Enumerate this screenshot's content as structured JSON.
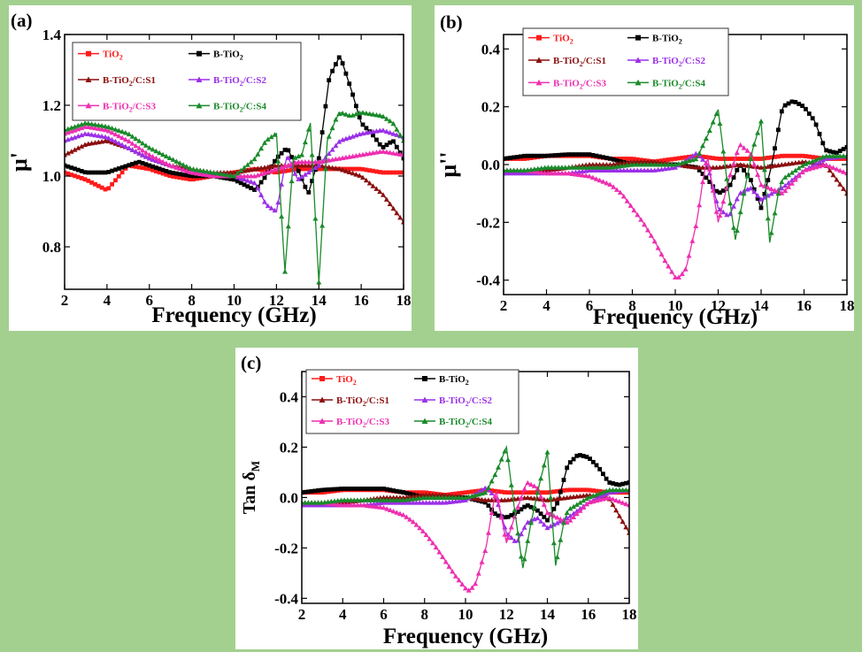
{
  "colors": {
    "background": "#a3d08f",
    "TiO2": "#ff1a1a",
    "B-TiO2": "#000000",
    "S1": "#8b0f0f",
    "S2": "#9b30e8",
    "S3": "#ee2fb0",
    "S4": "#1a8a2a"
  },
  "legend": {
    "entries": [
      {
        "key": "TiO2",
        "base": "TiO",
        "sub": "2",
        "rest": "",
        "color": "#ff1a1a",
        "marker": "square"
      },
      {
        "key": "B-TiO2",
        "base": "B-TiO",
        "sub": "2",
        "rest": "",
        "color": "#000000",
        "marker": "square"
      },
      {
        "key": "S1",
        "base": "B-TiO",
        "sub": "2",
        "rest": "/C:S1",
        "color": "#8b0f0f",
        "marker": "triangle"
      },
      {
        "key": "S2",
        "base": "B-TiO",
        "sub": "2",
        "rest": "/C:S2",
        "color": "#9b30e8",
        "marker": "triangle"
      },
      {
        "key": "S3",
        "base": "B-TiO",
        "sub": "2",
        "rest": "/C:S3",
        "color": "#ee2fb0",
        "marker": "triangle"
      },
      {
        "key": "S4",
        "base": "B-TiO",
        "sub": "2",
        "rest": "/C:S4",
        "color": "#1a8a2a",
        "marker": "triangle"
      }
    ]
  },
  "chart_data": [
    {
      "panel": "(a)",
      "type": "line",
      "xlabel": "Frequency (GHz)",
      "ylabel": "μ'",
      "xlim": [
        2,
        18
      ],
      "ylim": [
        0.68,
        1.4
      ],
      "xticks": [
        2,
        4,
        6,
        8,
        10,
        12,
        14,
        16,
        18
      ],
      "yticks": [
        0.8,
        1.0,
        1.2,
        1.4
      ],
      "ytick_labels": [
        "0.8",
        "1.0",
        "1.2",
        "1.4"
      ],
      "series": [
        {
          "name": "TiO2",
          "x": [
            2,
            3,
            4,
            5,
            6,
            7,
            8,
            9,
            10,
            11,
            12,
            13,
            14,
            15,
            16,
            17,
            18
          ],
          "y": [
            1.01,
            0.99,
            0.96,
            1.03,
            1.02,
            1.0,
            0.99,
            1.0,
            1.01,
            1.02,
            1.01,
            1.02,
            1.02,
            1.02,
            1.02,
            1.01,
            1.01
          ]
        },
        {
          "name": "B-TiO2",
          "x": [
            2,
            3,
            4,
            5,
            5.5,
            6,
            7,
            8,
            9,
            10,
            11,
            11.5,
            12,
            12.5,
            13,
            13.5,
            14,
            14.5,
            15,
            15.5,
            16,
            16.5,
            17,
            17.5,
            18
          ],
          "y": [
            1.03,
            1.01,
            1.01,
            1.03,
            1.04,
            1.03,
            1.01,
            1.0,
            1.0,
            0.99,
            0.96,
            1.0,
            1.05,
            1.08,
            1.02,
            0.95,
            1.05,
            1.28,
            1.34,
            1.25,
            1.15,
            1.12,
            1.08,
            1.1,
            1.05
          ]
        },
        {
          "name": "S1",
          "x": [
            2,
            3,
            4,
            5,
            6,
            7,
            8,
            9,
            10,
            11,
            12,
            13,
            14,
            15,
            16,
            17,
            18
          ],
          "y": [
            1.06,
            1.09,
            1.1,
            1.08,
            1.05,
            1.03,
            1.02,
            1.01,
            1.01,
            1.02,
            1.03,
            1.03,
            1.03,
            1.02,
            1.0,
            0.95,
            0.87
          ]
        },
        {
          "name": "S2",
          "x": [
            2,
            3,
            4,
            5,
            6,
            7,
            8,
            9,
            10,
            11,
            11.5,
            12,
            12.5,
            13,
            14,
            15,
            16,
            17,
            18
          ],
          "y": [
            1.1,
            1.12,
            1.11,
            1.08,
            1.05,
            1.03,
            1.01,
            1.01,
            1.0,
            0.98,
            0.92,
            0.9,
            1.06,
            0.99,
            1.03,
            1.1,
            1.12,
            1.13,
            1.11
          ]
        },
        {
          "name": "S3",
          "x": [
            2,
            3,
            4,
            5,
            6,
            7,
            8,
            9,
            10,
            11,
            12,
            13,
            14,
            15,
            16,
            17,
            18
          ],
          "y": [
            1.12,
            1.14,
            1.13,
            1.1,
            1.06,
            1.03,
            1.01,
            1.0,
            1.0,
            1.0,
            1.02,
            1.04,
            1.04,
            1.05,
            1.06,
            1.07,
            1.06
          ]
        },
        {
          "name": "S4",
          "x": [
            2,
            3,
            4,
            5,
            6,
            7,
            8,
            9,
            10,
            11,
            11.5,
            12,
            12.4,
            12.8,
            13.2,
            13.6,
            14,
            14.4,
            14.8,
            15,
            15.5,
            16,
            17,
            17.5,
            18
          ],
          "y": [
            1.13,
            1.15,
            1.14,
            1.12,
            1.08,
            1.05,
            1.02,
            1.01,
            1.0,
            1.05,
            1.1,
            1.12,
            0.73,
            1.05,
            1.06,
            1.15,
            0.7,
            1.1,
            1.16,
            1.18,
            1.17,
            1.18,
            1.17,
            1.15,
            1.1
          ]
        }
      ]
    },
    {
      "panel": "(b)",
      "type": "line",
      "xlabel": "Frequency (GHz)",
      "ylabel": "μ''",
      "xlim": [
        2,
        18
      ],
      "ylim": [
        -0.45,
        0.45
      ],
      "xticks": [
        2,
        4,
        6,
        8,
        10,
        12,
        14,
        16,
        18
      ],
      "yticks": [
        -0.4,
        -0.2,
        0.0,
        0.2,
        0.4
      ],
      "ytick_labels": [
        "-0.4",
        "-0.2",
        "0.0",
        "0.2",
        "0.4"
      ],
      "series": [
        {
          "name": "TiO2",
          "x": [
            2,
            3,
            4,
            5,
            6,
            7,
            8,
            9,
            10,
            11,
            12,
            13,
            14,
            15,
            16,
            17,
            18
          ],
          "y": [
            0.02,
            0.02,
            0.03,
            0.03,
            0.03,
            0.02,
            0.02,
            0.01,
            0.02,
            0.03,
            0.02,
            0.02,
            0.02,
            0.03,
            0.03,
            0.02,
            0.02
          ]
        },
        {
          "name": "B-TiO2",
          "x": [
            2,
            3,
            4,
            5,
            6,
            7,
            8,
            9,
            10,
            11,
            11.5,
            12,
            12.5,
            13,
            13.5,
            14,
            14.5,
            15,
            15.5,
            16,
            16.5,
            17,
            17.5,
            18
          ],
          "y": [
            0.02,
            0.03,
            0.03,
            0.035,
            0.035,
            0.02,
            0.0,
            0.0,
            0.0,
            -0.01,
            -0.05,
            -0.1,
            -0.08,
            0.0,
            -0.05,
            -0.15,
            0.0,
            0.2,
            0.22,
            0.2,
            0.15,
            0.05,
            0.04,
            0.06
          ]
        },
        {
          "name": "S1",
          "x": [
            2,
            3,
            4,
            5,
            6,
            7,
            8,
            9,
            10,
            11,
            12,
            13,
            14,
            15,
            16,
            17,
            17.5,
            18
          ],
          "y": [
            -0.03,
            -0.02,
            -0.02,
            -0.01,
            0.0,
            0.0,
            0.01,
            0.01,
            0.0,
            -0.01,
            -0.01,
            0.0,
            -0.01,
            0.0,
            0.01,
            0.0,
            -0.05,
            -0.1
          ]
        },
        {
          "name": "S2",
          "x": [
            2,
            3,
            4,
            5,
            6,
            7,
            8,
            9,
            10,
            11,
            11.5,
            12,
            12.5,
            13,
            13.5,
            14,
            15,
            16,
            17,
            18
          ],
          "y": [
            -0.03,
            -0.03,
            -0.03,
            -0.03,
            -0.02,
            -0.02,
            -0.02,
            -0.02,
            -0.01,
            0.04,
            0.0,
            -0.15,
            -0.18,
            -0.1,
            -0.08,
            -0.12,
            -0.08,
            -0.02,
            0.02,
            0.03
          ]
        },
        {
          "name": "S3",
          "x": [
            2,
            3,
            4,
            5,
            6,
            7,
            7.5,
            8,
            8.5,
            9,
            9.5,
            10,
            10.2,
            10.5,
            11,
            11.3,
            11.5,
            12,
            12.5,
            13,
            13.5,
            14,
            15,
            16,
            17,
            18
          ],
          "y": [
            -0.02,
            -0.02,
            -0.03,
            -0.03,
            -0.04,
            -0.07,
            -0.1,
            -0.15,
            -0.2,
            -0.26,
            -0.33,
            -0.39,
            -0.39,
            -0.36,
            -0.2,
            -0.05,
            0.03,
            -0.2,
            -0.05,
            0.07,
            0.04,
            -0.07,
            -0.1,
            -0.02,
            0.0,
            -0.03
          ]
        },
        {
          "name": "S4",
          "x": [
            2,
            3,
            4,
            5,
            6,
            7,
            8,
            9,
            10,
            11,
            11.5,
            12,
            12.4,
            12.8,
            13.2,
            13.6,
            14,
            14.4,
            14.8,
            15,
            16,
            17,
            18
          ],
          "y": [
            -0.02,
            -0.02,
            -0.01,
            -0.01,
            -0.01,
            -0.01,
            0.0,
            0.0,
            0.0,
            0.02,
            0.1,
            0.19,
            -0.05,
            -0.26,
            -0.1,
            0.05,
            0.15,
            -0.27,
            -0.1,
            -0.05,
            0.0,
            0.03,
            0.03
          ]
        }
      ]
    },
    {
      "panel": "(c)",
      "type": "line",
      "xlabel": "Frequency (GHz)",
      "ylabel": "Tan δM",
      "xlim": [
        2,
        18
      ],
      "ylim": [
        -0.42,
        0.5
      ],
      "xticks": [
        2,
        4,
        6,
        8,
        10,
        12,
        14,
        16,
        18
      ],
      "yticks": [
        -0.4,
        -0.2,
        0.0,
        0.2,
        0.4
      ],
      "ytick_labels": [
        "-0.4",
        "-0.2",
        "0.0",
        "0.2",
        "0.4"
      ],
      "series": [
        {
          "name": "TiO2",
          "x": [
            2,
            3,
            4,
            5,
            6,
            7,
            8,
            9,
            10,
            11,
            12,
            13,
            14,
            15,
            16,
            17,
            18
          ],
          "y": [
            0.02,
            0.02,
            0.03,
            0.03,
            0.03,
            0.02,
            0.02,
            0.01,
            0.02,
            0.03,
            0.02,
            0.02,
            0.02,
            0.03,
            0.03,
            0.02,
            0.02
          ]
        },
        {
          "name": "B-TiO2",
          "x": [
            2,
            3,
            4,
            5,
            6,
            7,
            8,
            9,
            10,
            11,
            11.5,
            12,
            12.5,
            13,
            13.5,
            14,
            14.5,
            15,
            15.5,
            16,
            16.5,
            17,
            17.5,
            18
          ],
          "y": [
            0.02,
            0.03,
            0.035,
            0.035,
            0.035,
            0.02,
            0.0,
            0.0,
            0.0,
            -0.02,
            -0.07,
            -0.08,
            -0.06,
            -0.03,
            -0.05,
            -0.09,
            -0.02,
            0.13,
            0.17,
            0.16,
            0.12,
            0.06,
            0.05,
            0.06
          ]
        },
        {
          "name": "S1",
          "x": [
            2,
            3,
            4,
            5,
            6,
            7,
            8,
            9,
            10,
            11,
            12,
            13,
            14,
            15,
            16,
            17,
            17.5,
            18
          ],
          "y": [
            -0.03,
            -0.02,
            -0.02,
            -0.01,
            0.0,
            0.0,
            0.01,
            0.01,
            0.0,
            -0.01,
            -0.01,
            0.0,
            -0.01,
            0.0,
            0.01,
            0.0,
            -0.07,
            -0.14
          ]
        },
        {
          "name": "S2",
          "x": [
            2,
            3,
            4,
            5,
            6,
            7,
            8,
            9,
            10,
            11,
            11.5,
            12,
            12.5,
            13,
            13.5,
            14,
            15,
            16,
            17,
            18
          ],
          "y": [
            -0.03,
            -0.03,
            -0.03,
            -0.03,
            -0.02,
            -0.02,
            -0.02,
            -0.02,
            -0.01,
            0.04,
            0.0,
            -0.14,
            -0.18,
            -0.1,
            -0.08,
            -0.12,
            -0.08,
            -0.02,
            0.02,
            0.03
          ]
        },
        {
          "name": "S3",
          "x": [
            2,
            3,
            4,
            5,
            6,
            7,
            7.5,
            8,
            8.5,
            9,
            9.5,
            10,
            10.2,
            10.5,
            11,
            11.3,
            11.5,
            12,
            12.5,
            13,
            13.5,
            14,
            15,
            16,
            17,
            18
          ],
          "y": [
            -0.02,
            -0.02,
            -0.03,
            -0.03,
            -0.04,
            -0.07,
            -0.1,
            -0.14,
            -0.19,
            -0.25,
            -0.31,
            -0.36,
            -0.37,
            -0.34,
            -0.2,
            -0.05,
            0.03,
            -0.18,
            -0.05,
            0.06,
            0.04,
            -0.06,
            -0.1,
            -0.02,
            0.0,
            -0.03
          ]
        },
        {
          "name": "S4",
          "x": [
            2,
            3,
            4,
            5,
            6,
            7,
            8,
            9,
            10,
            11,
            11.5,
            12,
            12.4,
            12.8,
            13.2,
            13.6,
            14,
            14.4,
            14.8,
            15,
            16,
            17,
            18
          ],
          "y": [
            -0.02,
            -0.02,
            -0.01,
            -0.01,
            -0.01,
            -0.01,
            0.0,
            0.0,
            0.0,
            0.02,
            0.1,
            0.2,
            -0.05,
            -0.28,
            -0.1,
            0.05,
            0.18,
            -0.27,
            -0.1,
            -0.05,
            0.0,
            0.03,
            0.03
          ]
        }
      ]
    }
  ]
}
